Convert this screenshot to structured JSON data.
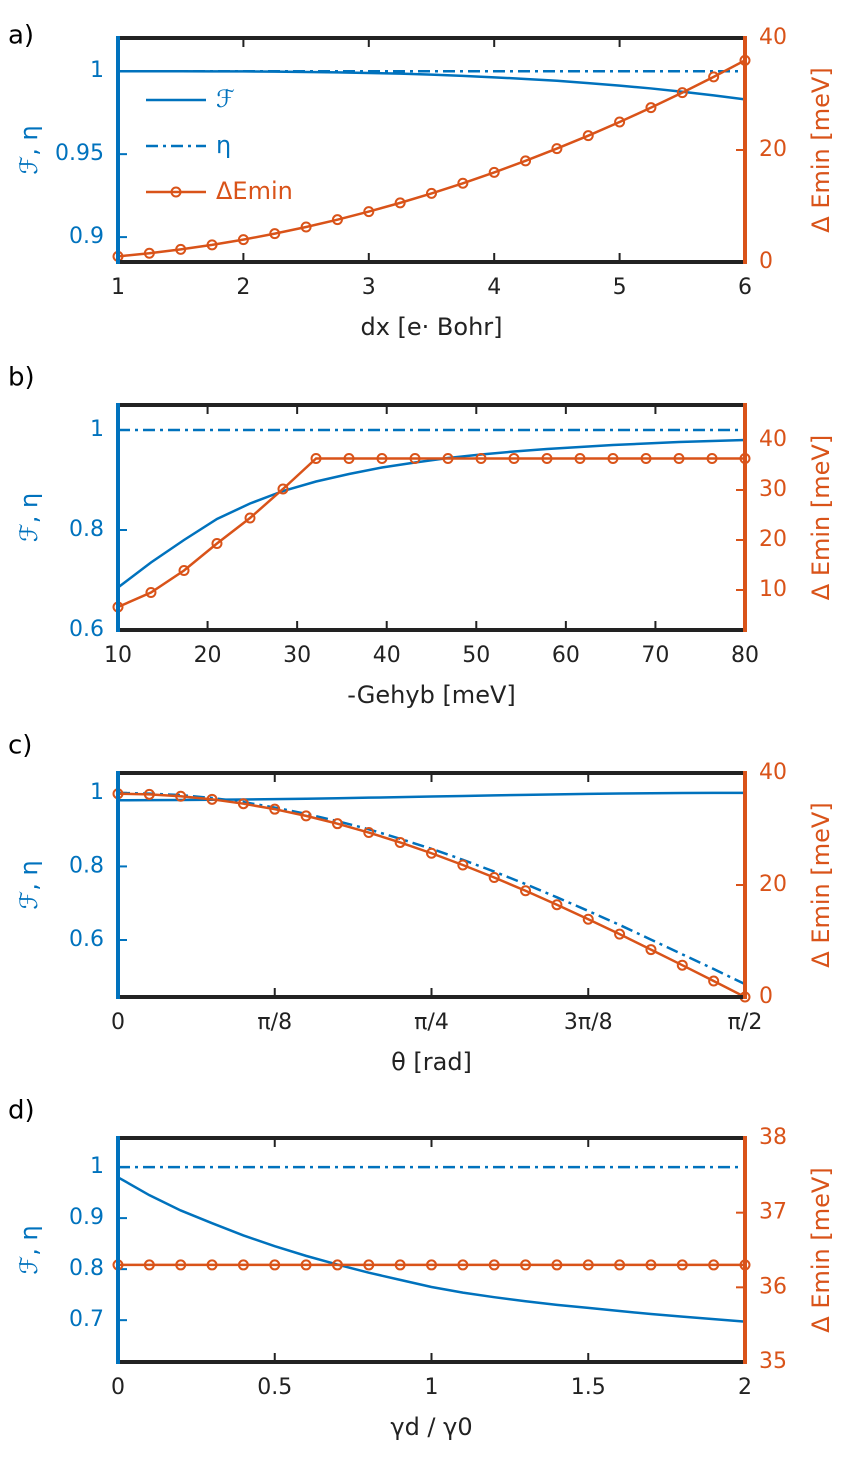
{
  "chart_data": [
    {
      "type": "line",
      "label": "a)",
      "x_label": "dx [e· Bohr]",
      "y_label": "ℱ, η",
      "y2_label": "Δ Emin [meV]",
      "legend": "upper left",
      "x": [
        1,
        1.25,
        1.5,
        1.75,
        2,
        2.25,
        2.5,
        2.75,
        3,
        3.25,
        3.5,
        3.75,
        4,
        4.25,
        4.5,
        4.75,
        5,
        5.25,
        5.5,
        5.75,
        6
      ],
      "xlim": [
        1,
        6
      ],
      "xticks": [
        1,
        2,
        3,
        4,
        5,
        6
      ],
      "ylim": [
        0.885,
        1.02
      ],
      "yticks": [
        0.9,
        0.95,
        1
      ],
      "y2lim": [
        0,
        40
      ],
      "y2ticks": [
        0,
        20,
        40
      ],
      "series": [
        {
          "name": "ℱ",
          "color": "#0072bd",
          "linestyle": "solid",
          "values": [
            1,
            1,
            1,
            0.9999,
            0.9999,
            0.9997,
            0.9995,
            0.9993,
            0.9989,
            0.9985,
            0.9979,
            0.9972,
            0.9963,
            0.9953,
            0.9942,
            0.9928,
            0.9913,
            0.9896,
            0.9876,
            0.9854,
            0.983
          ]
        },
        {
          "name": "η",
          "color": "#0072bd",
          "linestyle": "dashdot",
          "values": [
            1,
            1,
            1,
            1,
            1,
            1,
            1,
            1,
            1,
            1,
            1,
            1,
            1,
            1,
            1,
            1,
            1,
            1,
            1,
            1,
            1
          ]
        },
        {
          "name": "ΔEmin",
          "color": "#d95319",
          "linestyle": "solid",
          "marker": "o",
          "axis": "y2",
          "values": [
            1,
            1.56,
            2.25,
            3.06,
            4,
            5.06,
            6.25,
            7.56,
            9,
            10.56,
            12.25,
            14.06,
            16,
            18.06,
            20.25,
            22.56,
            25,
            27.56,
            30.25,
            33.06,
            36
          ]
        }
      ]
    },
    {
      "type": "line",
      "label": "b)",
      "x_label": "-Gehyb [meV]",
      "y_label": "ℱ, η",
      "y2_label": "Δ Emin [meV]",
      "x": [
        10,
        13.68,
        17.37,
        21.05,
        24.74,
        28.42,
        32.11,
        35.79,
        39.47,
        43.16,
        46.84,
        50.53,
        54.21,
        57.89,
        61.58,
        65.26,
        68.95,
        72.63,
        76.32,
        80
      ],
      "xlim": [
        10,
        80
      ],
      "xticks": [
        10,
        20,
        30,
        40,
        50,
        60,
        70,
        80
      ],
      "ylim": [
        0.6,
        1.05
      ],
      "yticks": [
        0.6,
        0.8,
        1
      ],
      "y2lim": [
        2,
        47
      ],
      "y2ticks": [
        10,
        20,
        30,
        40
      ],
      "series": [
        {
          "color": "#0072bd",
          "linestyle": "solid",
          "values": [
            0.685,
            0.735,
            0.78,
            0.822,
            0.853,
            0.878,
            0.897,
            0.912,
            0.925,
            0.935,
            0.944,
            0.951,
            0.957,
            0.962,
            0.966,
            0.97,
            0.973,
            0.976,
            0.978,
            0.98
          ]
        },
        {
          "color": "#0072bd",
          "linestyle": "dashdot",
          "values": [
            1,
            1,
            1,
            1,
            1,
            1,
            1,
            1,
            1,
            1,
            1,
            1,
            1,
            1,
            1,
            1,
            1,
            1,
            1,
            1
          ]
        },
        {
          "color": "#d95319",
          "linestyle": "solid",
          "marker": "o",
          "axis": "y2",
          "values": [
            6.6,
            9.5,
            13.9,
            19.3,
            24.4,
            30.2,
            36.3,
            36.3,
            36.3,
            36.3,
            36.3,
            36.3,
            36.3,
            36.3,
            36.3,
            36.3,
            36.3,
            36.3,
            36.3,
            36.3
          ]
        }
      ]
    },
    {
      "type": "line",
      "label": "c)",
      "x_label": "θ [rad]",
      "y_label": "ℱ, η",
      "y2_label": "Δ Emin [meV]",
      "x": [
        0,
        0.0785,
        0.1571,
        0.2356,
        0.3142,
        0.3927,
        0.4712,
        0.5498,
        0.6283,
        0.7069,
        0.7854,
        0.8639,
        0.9425,
        1.021,
        1.0996,
        1.1781,
        1.2566,
        1.3352,
        1.4137,
        1.4923,
        1.5708
      ],
      "xlim": [
        0,
        1.5708
      ],
      "xticks": [
        0,
        {
          "value": 0.3927,
          "label": "π/8"
        },
        {
          "value": 0.7854,
          "label": "π/4"
        },
        {
          "value": 1.1781,
          "label": "3π/8"
        },
        {
          "value": 1.5708,
          "label": "π/2"
        }
      ],
      "ylim": [
        0.445,
        1.054
      ],
      "yticks": [
        0.6,
        0.8,
        1
      ],
      "y2lim": [
        0,
        40
      ],
      "y2ticks": [
        0,
        20,
        40
      ],
      "series": [
        {
          "color": "#0072bd",
          "linestyle": "solid",
          "values": [
            0.98,
            0.9801,
            0.9805,
            0.9811,
            0.9819,
            0.9829,
            0.9841,
            0.9855,
            0.9869,
            0.9884,
            0.99,
            0.9916,
            0.9931,
            0.9945,
            0.9959,
            0.9971,
            0.9981,
            0.9989,
            0.9995,
            0.9999,
            1
          ]
        },
        {
          "color": "#0072bd",
          "linestyle": "dashdot",
          "values": [
            1,
            0.998,
            0.994,
            0.986,
            0.975,
            0.96,
            0.943,
            0.923,
            0.901,
            0.875,
            0.848,
            0.818,
            0.786,
            0.752,
            0.716,
            0.679,
            0.641,
            0.601,
            0.561,
            0.521,
            0.48
          ]
        },
        {
          "color": "#d95319",
          "linestyle": "solid",
          "marker": "o",
          "axis": "y2",
          "values": [
            36.3,
            36.19,
            35.85,
            35.3,
            34.52,
            33.54,
            32.34,
            30.95,
            29.37,
            27.6,
            25.67,
            23.57,
            21.34,
            18.97,
            16.48,
            13.89,
            11.22,
            8.47,
            5.68,
            2.85,
            0
          ]
        }
      ]
    },
    {
      "type": "line",
      "label": "d)",
      "x_label": "γd / γ0",
      "y_label": "ℱ, η",
      "y2_label": "Δ Emin [meV]",
      "x": [
        0,
        0.1,
        0.2,
        0.3,
        0.4,
        0.5,
        0.6,
        0.7,
        0.8,
        0.9,
        1,
        1.1,
        1.2,
        1.3,
        1.4,
        1.5,
        1.6,
        1.7,
        1.8,
        1.9,
        2
      ],
      "xlim": [
        0,
        2
      ],
      "xticks": [
        0,
        0.5,
        1,
        1.5,
        2
      ],
      "ylim": [
        0.618,
        1.057
      ],
      "yticks": [
        0.7,
        0.8,
        0.9,
        1
      ],
      "y2lim": [
        35,
        38
      ],
      "y2ticks": [
        35,
        36,
        37,
        38
      ],
      "series": [
        {
          "color": "#0072bd",
          "linestyle": "solid",
          "values": [
            0.98,
            0.945,
            0.915,
            0.89,
            0.866,
            0.845,
            0.826,
            0.809,
            0.793,
            0.779,
            0.765,
            0.754,
            0.745,
            0.737,
            0.73,
            0.724,
            0.718,
            0.712,
            0.707,
            0.702,
            0.697
          ]
        },
        {
          "color": "#0072bd",
          "linestyle": "dashdot",
          "values": [
            1,
            1,
            1,
            1,
            1,
            1,
            1,
            1,
            1,
            1,
            1,
            1,
            1,
            1,
            1,
            1,
            1,
            1,
            1,
            1,
            1
          ]
        },
        {
          "color": "#d95319",
          "linestyle": "solid",
          "marker": "o",
          "axis": "y2",
          "values": [
            36.3,
            36.3,
            36.3,
            36.3,
            36.3,
            36.3,
            36.3,
            36.3,
            36.3,
            36.3,
            36.3,
            36.3,
            36.3,
            36.3,
            36.3,
            36.3,
            36.3,
            36.3,
            36.3,
            36.3,
            36.3
          ]
        }
      ]
    }
  ]
}
